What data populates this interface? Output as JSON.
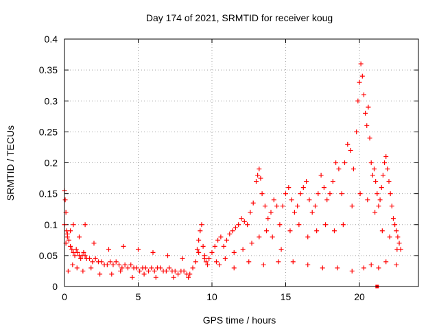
{
  "chart_data": {
    "type": "scatter",
    "title": "Day 174 of 2021, SRMTID for receiver koug",
    "xlabel": "GPS time / hours",
    "ylabel": "SRMTID / TECUs",
    "xlim": [
      0,
      24
    ],
    "ylim": [
      0,
      0.4
    ],
    "xticks": [
      0,
      5,
      10,
      15,
      20
    ],
    "xtick_labels": [
      "0",
      "5",
      "10",
      "15",
      "20"
    ],
    "yticks": [
      0,
      0.05,
      0.1,
      0.15,
      0.2,
      0.25,
      0.3,
      0.35,
      0.4
    ],
    "ytick_labels": [
      "0",
      "0.05",
      "0.1",
      "0.15",
      "0.2",
      "0.25",
      "0.3",
      "0.35",
      "0.4"
    ],
    "grid": true,
    "marker": "+",
    "color": "#ff0000",
    "series": [
      {
        "name": "SRMTID",
        "x": [
          0.0,
          0.05,
          0.1,
          0.15,
          0.2,
          0.3,
          0.4,
          0.5,
          0.6,
          0.7,
          0.8,
          0.9,
          1.0,
          1.1,
          1.2,
          1.3,
          1.4,
          1.5,
          1.7,
          1.9,
          2.1,
          2.3,
          2.5,
          2.7,
          2.9,
          3.1,
          3.3,
          3.5,
          3.7,
          3.9,
          4.1,
          4.3,
          4.5,
          4.7,
          4.9,
          5.1,
          5.3,
          5.5,
          5.7,
          5.9,
          6.1,
          6.3,
          6.5,
          6.7,
          6.9,
          7.1,
          7.3,
          7.5,
          7.7,
          7.9,
          8.1,
          8.3,
          8.5,
          8.7,
          8.9,
          9.0,
          9.1,
          9.2,
          9.3,
          9.4,
          9.5,
          9.6,
          9.8,
          10.0,
          10.2,
          10.4,
          10.6,
          10.8,
          11.0,
          11.2,
          11.4,
          11.6,
          11.8,
          12.0,
          12.2,
          12.4,
          12.6,
          12.8,
          13.0,
          13.1,
          13.2,
          13.3,
          13.4,
          13.6,
          13.8,
          14.0,
          14.2,
          14.4,
          14.6,
          14.8,
          15.0,
          15.2,
          15.4,
          15.6,
          15.8,
          16.0,
          16.2,
          16.4,
          16.6,
          16.8,
          17.0,
          17.2,
          17.4,
          17.6,
          17.8,
          18.0,
          18.2,
          18.4,
          18.6,
          18.8,
          19.0,
          19.2,
          19.4,
          19.6,
          19.8,
          19.9,
          20.0,
          20.1,
          20.2,
          20.3,
          20.4,
          20.5,
          20.6,
          20.7,
          20.8,
          20.9,
          21.0,
          21.1,
          21.2,
          21.3,
          21.4,
          21.5,
          21.6,
          21.7,
          21.8,
          21.9,
          22.0,
          22.1,
          22.2,
          22.3,
          22.4,
          22.5,
          22.6,
          22.7,
          22.8,
          0.0,
          0.1,
          0.2,
          0.4,
          0.6,
          1.0,
          1.4,
          2.0,
          3.0,
          4.0,
          5.0,
          6.0,
          7.0,
          8.0,
          9.5,
          10.5,
          11.5,
          12.5,
          13.5,
          14.5,
          15.5,
          16.5,
          17.5,
          18.5,
          19.5,
          20.3,
          20.8,
          21.3,
          21.8,
          22.5,
          0.25,
          0.55,
          0.85,
          1.25,
          1.8,
          2.4,
          3.2,
          3.8,
          4.6,
          5.4,
          6.2,
          7.4,
          8.4,
          9.1,
          9.7,
          10.3,
          10.9,
          11.5,
          12.1,
          12.7,
          13.2,
          13.7,
          14.1,
          14.7,
          15.3,
          15.9,
          16.5,
          17.1,
          17.7,
          18.3,
          18.9,
          19.5,
          20.05,
          20.55,
          21.05,
          21.55,
          22.05,
          22.55
        ],
        "y": [
          0.155,
          0.14,
          0.12,
          0.09,
          0.085,
          0.075,
          0.065,
          0.06,
          0.055,
          0.05,
          0.06,
          0.055,
          0.05,
          0.045,
          0.05,
          0.055,
          0.05,
          0.045,
          0.045,
          0.04,
          0.045,
          0.04,
          0.04,
          0.035,
          0.035,
          0.04,
          0.035,
          0.04,
          0.035,
          0.03,
          0.035,
          0.03,
          0.035,
          0.03,
          0.03,
          0.025,
          0.03,
          0.03,
          0.025,
          0.03,
          0.025,
          0.03,
          0.03,
          0.025,
          0.025,
          0.03,
          0.025,
          0.025,
          0.02,
          0.025,
          0.025,
          0.02,
          0.02,
          0.03,
          0.04,
          0.06,
          0.075,
          0.09,
          0.1,
          0.065,
          0.05,
          0.04,
          0.045,
          0.055,
          0.065,
          0.075,
          0.08,
          0.065,
          0.075,
          0.085,
          0.09,
          0.095,
          0.1,
          0.11,
          0.105,
          0.1,
          0.12,
          0.135,
          0.17,
          0.18,
          0.19,
          0.175,
          0.15,
          0.13,
          0.11,
          0.12,
          0.14,
          0.13,
          0.1,
          0.13,
          0.15,
          0.16,
          0.14,
          0.12,
          0.13,
          0.15,
          0.16,
          0.17,
          0.14,
          0.12,
          0.13,
          0.15,
          0.18,
          0.16,
          0.14,
          0.15,
          0.17,
          0.2,
          0.19,
          0.15,
          0.2,
          0.23,
          0.22,
          0.19,
          0.25,
          0.3,
          0.33,
          0.36,
          0.34,
          0.31,
          0.28,
          0.26,
          0.29,
          0.24,
          0.2,
          0.18,
          0.19,
          0.17,
          0.15,
          0.13,
          0.14,
          0.16,
          0.18,
          0.2,
          0.21,
          0.19,
          0.17,
          0.15,
          0.13,
          0.11,
          0.1,
          0.09,
          0.08,
          0.07,
          0.06,
          0.1,
          0.07,
          0.08,
          0.09,
          0.1,
          0.08,
          0.1,
          0.07,
          0.06,
          0.065,
          0.06,
          0.055,
          0.05,
          0.045,
          0.045,
          0.035,
          0.03,
          0.04,
          0.035,
          0.04,
          0.04,
          0.035,
          0.03,
          0.03,
          0.025,
          0.03,
          0.035,
          0.03,
          0.04,
          0.035,
          0.025,
          0.035,
          0.03,
          0.025,
          0.03,
          0.02,
          0.02,
          0.025,
          0.015,
          0.02,
          0.015,
          0.015,
          0.015,
          0.055,
          0.035,
          0.04,
          0.045,
          0.055,
          0.06,
          0.07,
          0.08,
          0.09,
          0.08,
          0.06,
          0.09,
          0.1,
          0.08,
          0.09,
          0.1,
          0.09,
          0.1,
          0.13,
          0.15,
          0.14,
          0.12,
          0.09,
          0.08,
          0.06
        ]
      }
    ],
    "isolated_mark": {
      "x": 21.2,
      "y": 0.0
    }
  }
}
